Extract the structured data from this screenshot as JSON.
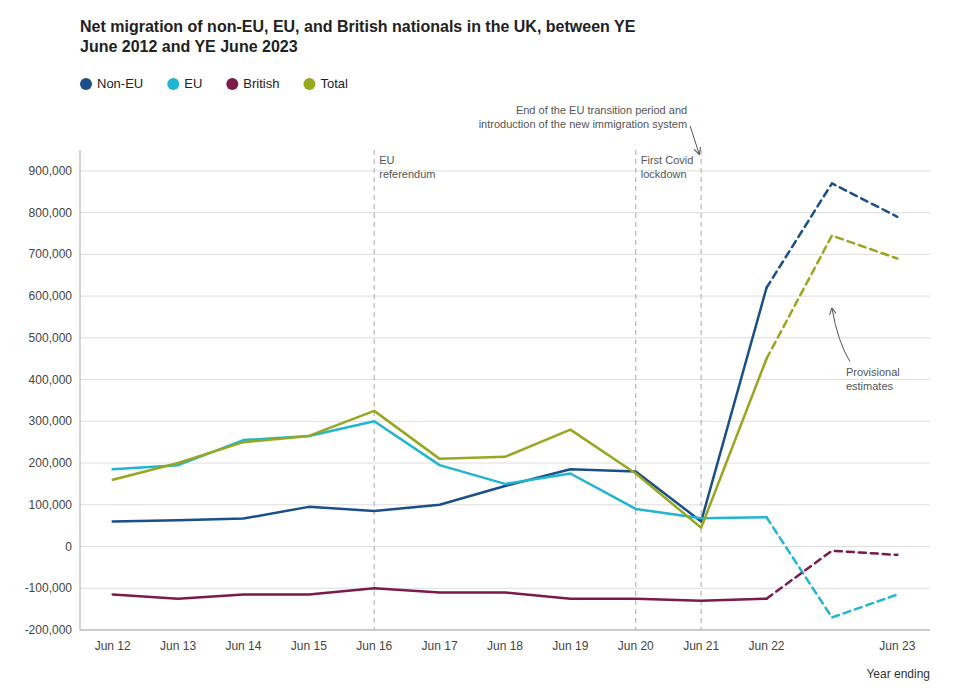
{
  "chart_data": {
    "type": "line",
    "title": "Net migration of non-EU, EU, and British nationals in the UK, between YE\nJune 2012 and YE June 2023",
    "xlabel": "Year ending",
    "categories": [
      "Jun 12",
      "Jun 13",
      "Jun 14",
      "Jun 15",
      "Jun 16",
      "Jun 17",
      "Jun 18",
      "Jun 19",
      "Jun 20",
      "Jun 21",
      "Jun 22",
      null,
      "Jun 23"
    ],
    "series": [
      {
        "name": "Non-EU",
        "color": "#1b4f8a",
        "values": [
          60000,
          63000,
          67000,
          95000,
          85000,
          100000,
          145000,
          185000,
          180000,
          60000,
          620000,
          870000,
          790000
        ]
      },
      {
        "name": "EU",
        "color": "#22b5d0",
        "values": [
          185000,
          195000,
          255000,
          265000,
          300000,
          195000,
          150000,
          175000,
          90000,
          68000,
          70000,
          -170000,
          -115000
        ]
      },
      {
        "name": "British",
        "color": "#7b1a4b",
        "values": [
          -115000,
          -125000,
          -115000,
          -115000,
          -100000,
          -110000,
          -110000,
          -125000,
          -125000,
          -130000,
          -125000,
          -10000,
          -20000
        ]
      },
      {
        "name": "Total",
        "color": "#97a820",
        "values": [
          160000,
          200000,
          250000,
          265000,
          325000,
          210000,
          215000,
          280000,
          175000,
          45000,
          450000,
          745000,
          690000
        ]
      }
    ],
    "ylim": [
      -200000,
      950000
    ],
    "yticks": [
      {
        "value": -200000,
        "label": "-200,000"
      },
      {
        "value": -100000,
        "label": "-100,000"
      },
      0,
      {
        "value": 100000,
        "label": "100,000"
      },
      {
        "value": 200000,
        "label": "200,000"
      },
      {
        "value": 300000,
        "label": "300,000"
      },
      {
        "value": 400000,
        "label": "400,000"
      },
      {
        "value": 500000,
        "label": "500,000"
      },
      {
        "value": 600000,
        "label": "600,000"
      },
      {
        "value": 700000,
        "label": "700,000"
      },
      {
        "value": 800000,
        "label": "800,000"
      },
      {
        "value": 900000,
        "label": "900,000"
      }
    ],
    "grid": true,
    "legend": "top",
    "annotations": [
      {
        "type": "vline",
        "x": "Jun 16",
        "text": "EU\nreferendum"
      },
      {
        "type": "vline",
        "x": "Jun 20",
        "text": "First Covid\nlockdown"
      },
      {
        "type": "vline",
        "x": "Jun 21",
        "text": "End of the EU transition period and\nintroduction of the new immigration system"
      },
      {
        "type": "provisional",
        "from": "Jun 22",
        "text": "Provisional\nestimates"
      }
    ]
  }
}
